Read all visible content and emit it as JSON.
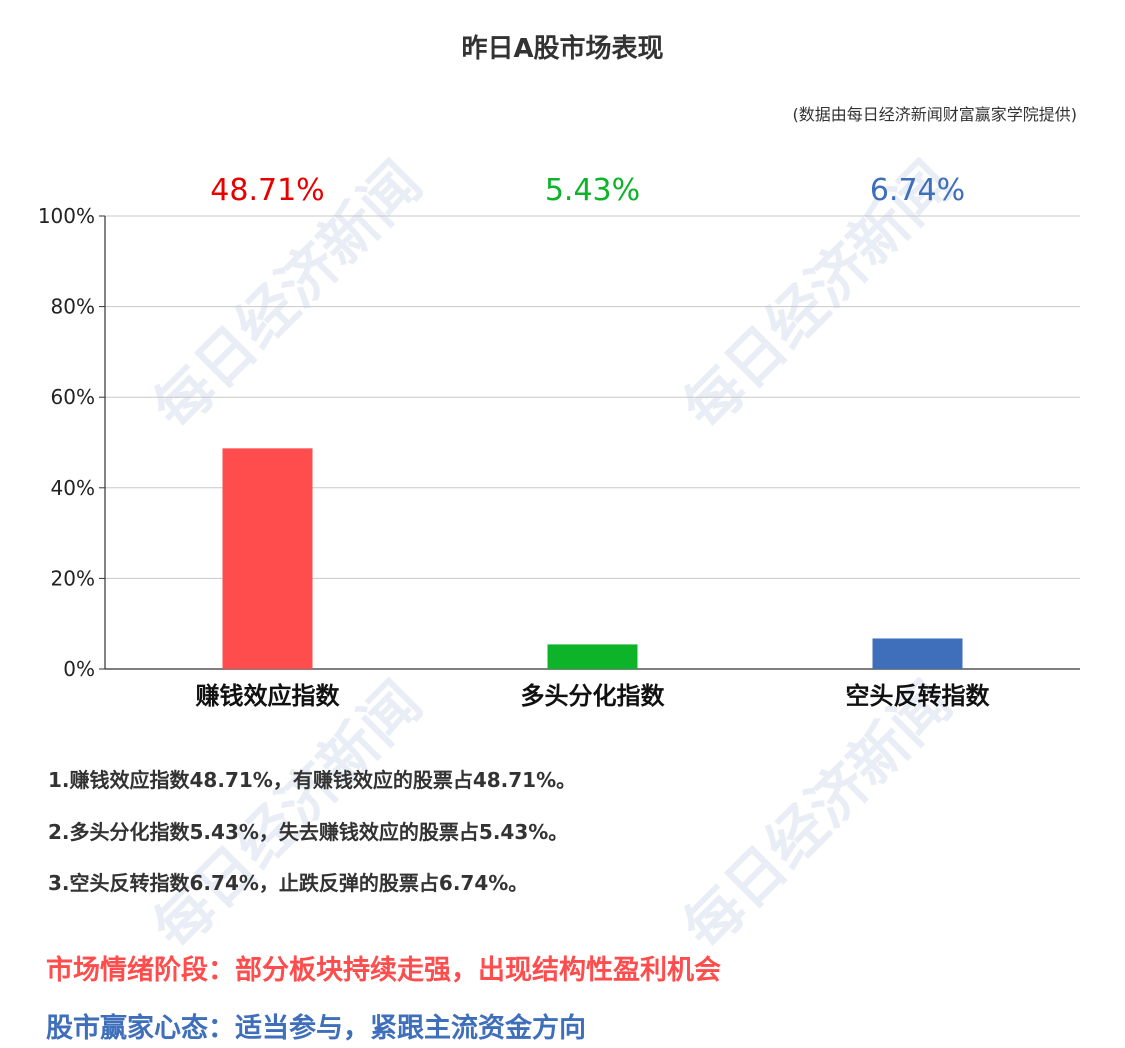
{
  "title": "昨日A股市场表现",
  "source": "(数据由每日经济新闻财富赢家学院提供)",
  "watermark": "每日经济新闻",
  "chart_data": {
    "type": "bar",
    "categories": [
      "赚钱效应指数",
      "多头分化指数",
      "空头反转指数"
    ],
    "values": [
      48.71,
      5.43,
      6.74
    ],
    "value_labels": [
      "48.71%",
      "5.43%",
      "6.74%"
    ],
    "colors": [
      "#ff4c4c",
      "#0db42a",
      "#3f6fba"
    ],
    "label_colors": [
      "#e60000",
      "#0db42a",
      "#3f6fba"
    ],
    "ylim": [
      0,
      100
    ],
    "yticks": [
      "0%",
      "20%",
      "40%",
      "60%",
      "80%",
      "100%"
    ],
    "grid": true
  },
  "notes": [
    "1.赚钱效应指数48.71%，有赚钱效应的股票占48.71%。",
    "2.多头分化指数5.43%，失去赚钱效应的股票占5.43%。",
    "3.空头反转指数6.74%，止跌反弹的股票占6.74%。"
  ],
  "summary": {
    "stage": "市场情绪阶段：部分板块持续走强，出现结构性盈利机会",
    "stage_color": "#ff4c4c",
    "mindset": "股市赢家心态：适当参与，紧跟主流资金方向",
    "mindset_color": "#3f6fba"
  }
}
